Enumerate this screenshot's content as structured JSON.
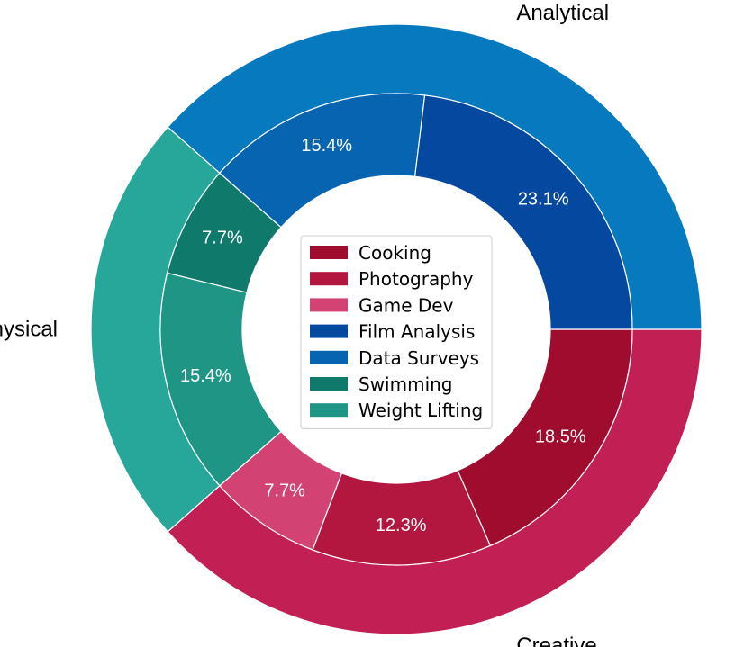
{
  "chart_data": {
    "type": "pie",
    "subtype": "nested-donut",
    "outer_ring": [
      {
        "name": "Creative",
        "value": 38.5,
        "color": "#c21f55"
      },
      {
        "name": "Physical",
        "value": 23.1,
        "color": "#27a69a"
      },
      {
        "name": "Analytical",
        "value": 38.5,
        "color": "#0679bf"
      }
    ],
    "inner_ring": [
      {
        "name": "Cooking",
        "group": "Creative",
        "value": 18.5,
        "label": "18.5%",
        "color": "#a00c2d"
      },
      {
        "name": "Photography",
        "group": "Creative",
        "value": 12.3,
        "label": "12.3%",
        "color": "#b3163f"
      },
      {
        "name": "Game Dev",
        "group": "Creative",
        "value": 7.7,
        "label": "7.7%",
        "color": "#d24373"
      },
      {
        "name": "Weight Lifting",
        "group": "Physical",
        "value": 15.4,
        "label": "15.4%",
        "color": "#1e9585"
      },
      {
        "name": "Swimming",
        "group": "Physical",
        "value": 7.7,
        "label": "7.7%",
        "color": "#0f7a6c"
      },
      {
        "name": "Data Surveys",
        "group": "Analytical",
        "value": 15.4,
        "label": "15.4%",
        "color": "#0664b0"
      },
      {
        "name": "Film Analysis",
        "group": "Analytical",
        "value": 23.1,
        "label": "23.1%",
        "color": "#0448a0"
      }
    ],
    "legend": [
      {
        "name": "Cooking",
        "color": "#a00c2d"
      },
      {
        "name": "Photography",
        "color": "#b3163f"
      },
      {
        "name": "Game Dev",
        "color": "#d24373"
      },
      {
        "name": "Film Analysis",
        "color": "#0448a0"
      },
      {
        "name": "Data Surveys",
        "color": "#0664b0"
      },
      {
        "name": "Swimming",
        "color": "#0f7a6c"
      },
      {
        "name": "Weight Lifting",
        "color": "#1e9585"
      }
    ],
    "legend_position": "center",
    "direction": "clockwise",
    "start": "east"
  }
}
